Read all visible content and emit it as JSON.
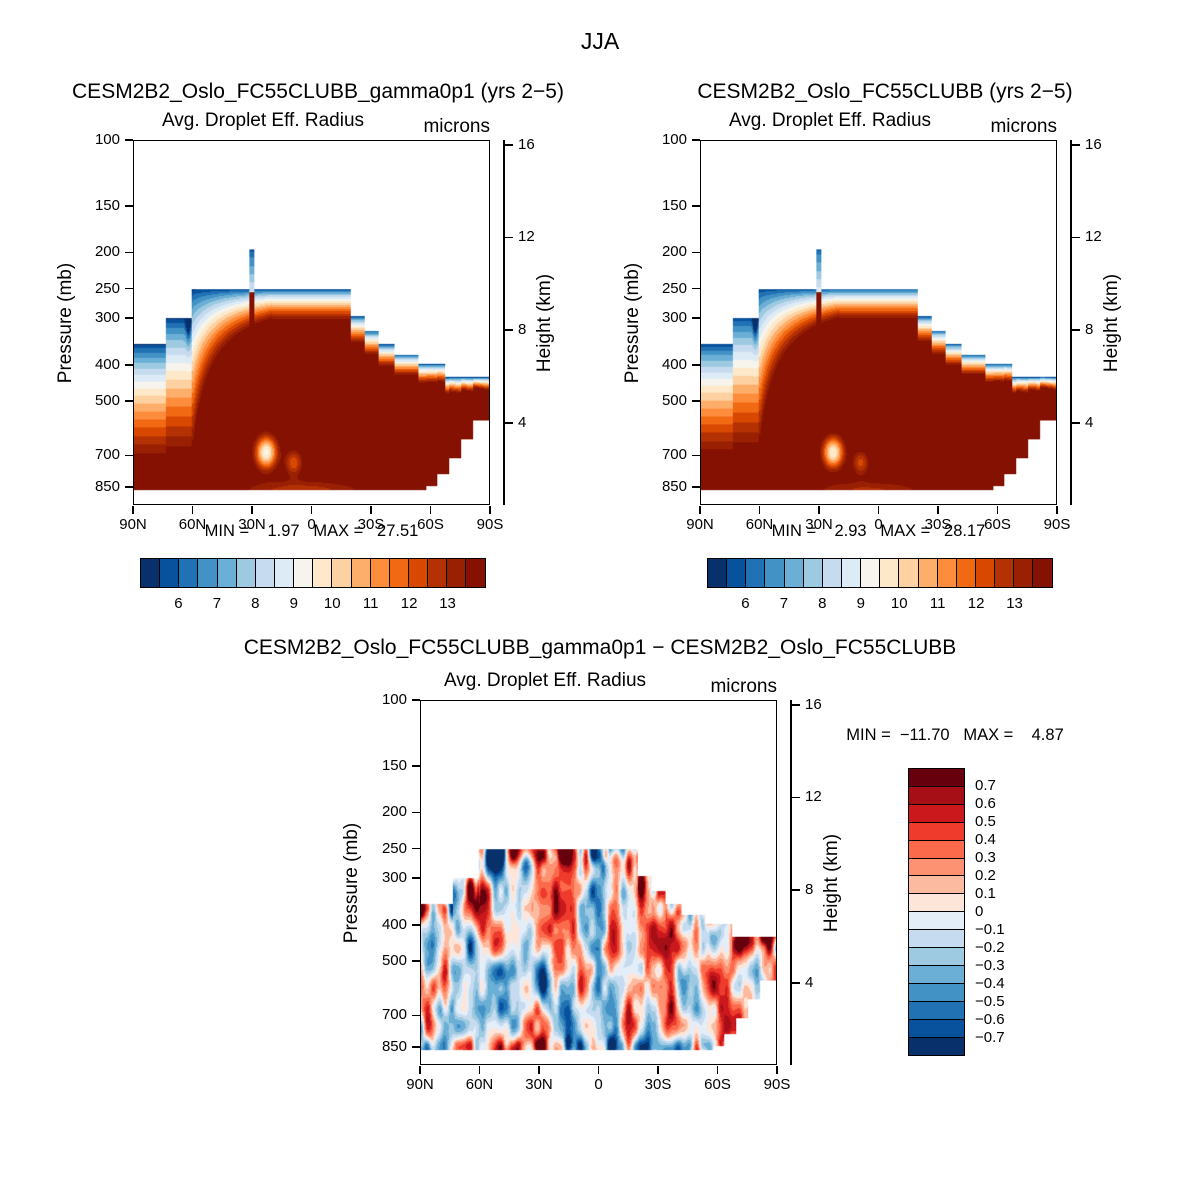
{
  "title": "JJA",
  "axis": {
    "pressure_label": "Pressure (mb)",
    "height_label": "Height (km)",
    "pressure_ticks": [
      "100",
      "150",
      "200",
      "250",
      "300",
      "400",
      "500",
      "700",
      "850"
    ],
    "height_ticks": [
      "16",
      "12",
      "8",
      "4"
    ],
    "lat_ticks": [
      "90N",
      "60N",
      "30N",
      "0",
      "30S",
      "60S",
      "90S"
    ]
  },
  "panels": [
    {
      "id": "gamma0p1_run",
      "title": "CESM2B2_Oslo_FC55CLUBB_gamma0p1 (yrs 2−5)",
      "subtitle": "Avg. Droplet Eff. Radius",
      "units": "microns",
      "minmax": "MIN =    1.97   MAX =   27.51",
      "colorbar": {
        "orientation": "horizontal",
        "tick_labels": [
          "6",
          "7",
          "8",
          "9",
          "10",
          "11",
          "12",
          "13"
        ],
        "colors": [
          "#08306b",
          "#08519c",
          "#2171b5",
          "#4292c6",
          "#6baed6",
          "#9ecae1",
          "#c6dbef",
          "#dcebf5",
          "#f6f4ec",
          "#fde9c9",
          "#fdd1a1",
          "#fdae6b",
          "#fd8d3c",
          "#f16913",
          "#d94801",
          "#b43104",
          "#9a2003",
          "#841102"
        ]
      }
    },
    {
      "id": "control_run",
      "title": "CESM2B2_Oslo_FC55CLUBB (yrs 2−5)",
      "subtitle": "Avg. Droplet Eff. Radius",
      "units": "microns",
      "minmax": "MIN =    2.93   MAX =   28.17",
      "colorbar": {
        "orientation": "horizontal",
        "tick_labels": [
          "6",
          "7",
          "8",
          "9",
          "10",
          "11",
          "12",
          "13"
        ],
        "colors": [
          "#08306b",
          "#08519c",
          "#2171b5",
          "#4292c6",
          "#6baed6",
          "#9ecae1",
          "#c6dbef",
          "#dcebf5",
          "#f6f4ec",
          "#fde9c9",
          "#fdd1a1",
          "#fdae6b",
          "#fd8d3c",
          "#f16913",
          "#d94801",
          "#b43104",
          "#9a2003",
          "#841102"
        ]
      }
    },
    {
      "id": "difference",
      "title": "CESM2B2_Oslo_FC55CLUBB_gamma0p1 − CESM2B2_Oslo_FC55CLUBB",
      "subtitle": "Avg. Droplet Eff. Radius",
      "units": "microns",
      "minmax": "MIN =  −11.70   MAX =    4.87",
      "colorbar": {
        "orientation": "vertical",
        "tick_labels": [
          "0.7",
          "0.6",
          "0.5",
          "0.4",
          "0.3",
          "0.2",
          "0.1",
          "0",
          "−0.1",
          "−0.2",
          "−0.3",
          "−0.4",
          "−0.5",
          "−0.6",
          "−0.7"
        ],
        "colors": [
          "#67000d",
          "#a50f15",
          "#cb181d",
          "#ef3b2c",
          "#fb6a4a",
          "#fc9272",
          "#fcbba1",
          "#fee5d9",
          "#e3eef9",
          "#c6dbef",
          "#9ecae1",
          "#6baed6",
          "#4292c6",
          "#2171b5",
          "#08519c",
          "#08306b"
        ]
      }
    }
  ],
  "chart_data": [
    {
      "type": "heatmap",
      "chart_kind": "filled latitude-pressure contour section",
      "season": "JJA",
      "title": "CESM2B2_Oslo_FC55CLUBB_gamma0p1 (yrs 2−5)",
      "variable": "Avg. Droplet Eff. Radius",
      "units": "microns",
      "x_axis": {
        "label": "latitude",
        "ticks": [
          "90N",
          "60N",
          "30N",
          "0",
          "30S",
          "60S",
          "90S"
        ]
      },
      "y_axis_left": {
        "label": "Pressure (mb)",
        "scale": "log",
        "ticks": [
          100,
          150,
          200,
          250,
          300,
          400,
          500,
          700,
          850
        ]
      },
      "y_axis_right": {
        "label": "Height (km)",
        "ticks": [
          16,
          12,
          8,
          4
        ]
      },
      "min": 1.97,
      "max": 27.51,
      "contour_levels": [
        5.5,
        6,
        6.5,
        7,
        7.5,
        8,
        8.5,
        9,
        9.5,
        10,
        10.5,
        11,
        11.5,
        12,
        12.5,
        13,
        13.5
      ],
      "labeled_levels": [
        6,
        7,
        8,
        9,
        10,
        11,
        12,
        13
      ],
      "summary": "Small droplet radii (~6 microns, blue) near cloud top around 200-350 mb with a narrow spike to ~200 mb near 30N; radii increase downward, exceeding 13.5 microns (dark red) through most of the tropical and Southern Hemisphere troposphere down to ~870 mb; stepped cloud-top boundary descends poleward on both sides; field masked above cloud top."
    },
    {
      "type": "heatmap",
      "chart_kind": "filled latitude-pressure contour section",
      "season": "JJA",
      "title": "CESM2B2_Oslo_FC55CLUBB (yrs 2−5)",
      "variable": "Avg. Droplet Eff. Radius",
      "units": "microns",
      "x_axis": {
        "label": "latitude",
        "ticks": [
          "90N",
          "60N",
          "30N",
          "0",
          "30S",
          "60S",
          "90S"
        ]
      },
      "y_axis_left": {
        "label": "Pressure (mb)",
        "scale": "log",
        "ticks": [
          100,
          150,
          200,
          250,
          300,
          400,
          500,
          700,
          850
        ]
      },
      "y_axis_right": {
        "label": "Height (km)",
        "ticks": [
          16,
          12,
          8,
          4
        ]
      },
      "min": 2.93,
      "max": 28.17,
      "contour_levels": [
        5.5,
        6,
        6.5,
        7,
        7.5,
        8,
        8.5,
        9,
        9.5,
        10,
        10.5,
        11,
        11.5,
        12,
        12.5,
        13,
        13.5
      ],
      "labeled_levels": [
        6,
        7,
        8,
        9,
        10,
        11,
        12,
        13
      ],
      "summary": "Nearly identical structure to the gamma0p1 run: blue small radii at cloud top near 250 mb, dark red (>13.5 microns) dome filling the tropics and southern mid-latitudes down to ~870 mb, gradual blue-to-red gradient in the northern high latitudes."
    },
    {
      "type": "heatmap",
      "chart_kind": "filled latitude-pressure contour difference section",
      "season": "JJA",
      "title": "CESM2B2_Oslo_FC55CLUBB_gamma0p1 − CESM2B2_Oslo_FC55CLUBB",
      "variable": "Avg. Droplet Eff. Radius",
      "units": "microns",
      "x_axis": {
        "label": "latitude",
        "ticks": [
          "90N",
          "60N",
          "30N",
          "0",
          "30S",
          "60S",
          "90S"
        ]
      },
      "y_axis_left": {
        "label": "Pressure (mb)",
        "scale": "log",
        "ticks": [
          100,
          150,
          200,
          250,
          300,
          400,
          500,
          700,
          850
        ]
      },
      "y_axis_right": {
        "label": "Height (km)",
        "ticks": [
          16,
          12,
          8,
          4
        ]
      },
      "min": -11.7,
      "max": 4.87,
      "contour_levels": [
        -0.7,
        -0.6,
        -0.5,
        -0.4,
        -0.3,
        -0.2,
        -0.1,
        0,
        0.1,
        0.2,
        0.3,
        0.4,
        0.5,
        0.6,
        0.7
      ],
      "summary": "Mottled pattern of positive (red) and negative (blue) differences, mostly within +/-0.7 microns, organized in vertical streaks; strongest alternating anomalies along the cloud-top boundary near 250 mb and near 850 mb."
    }
  ]
}
